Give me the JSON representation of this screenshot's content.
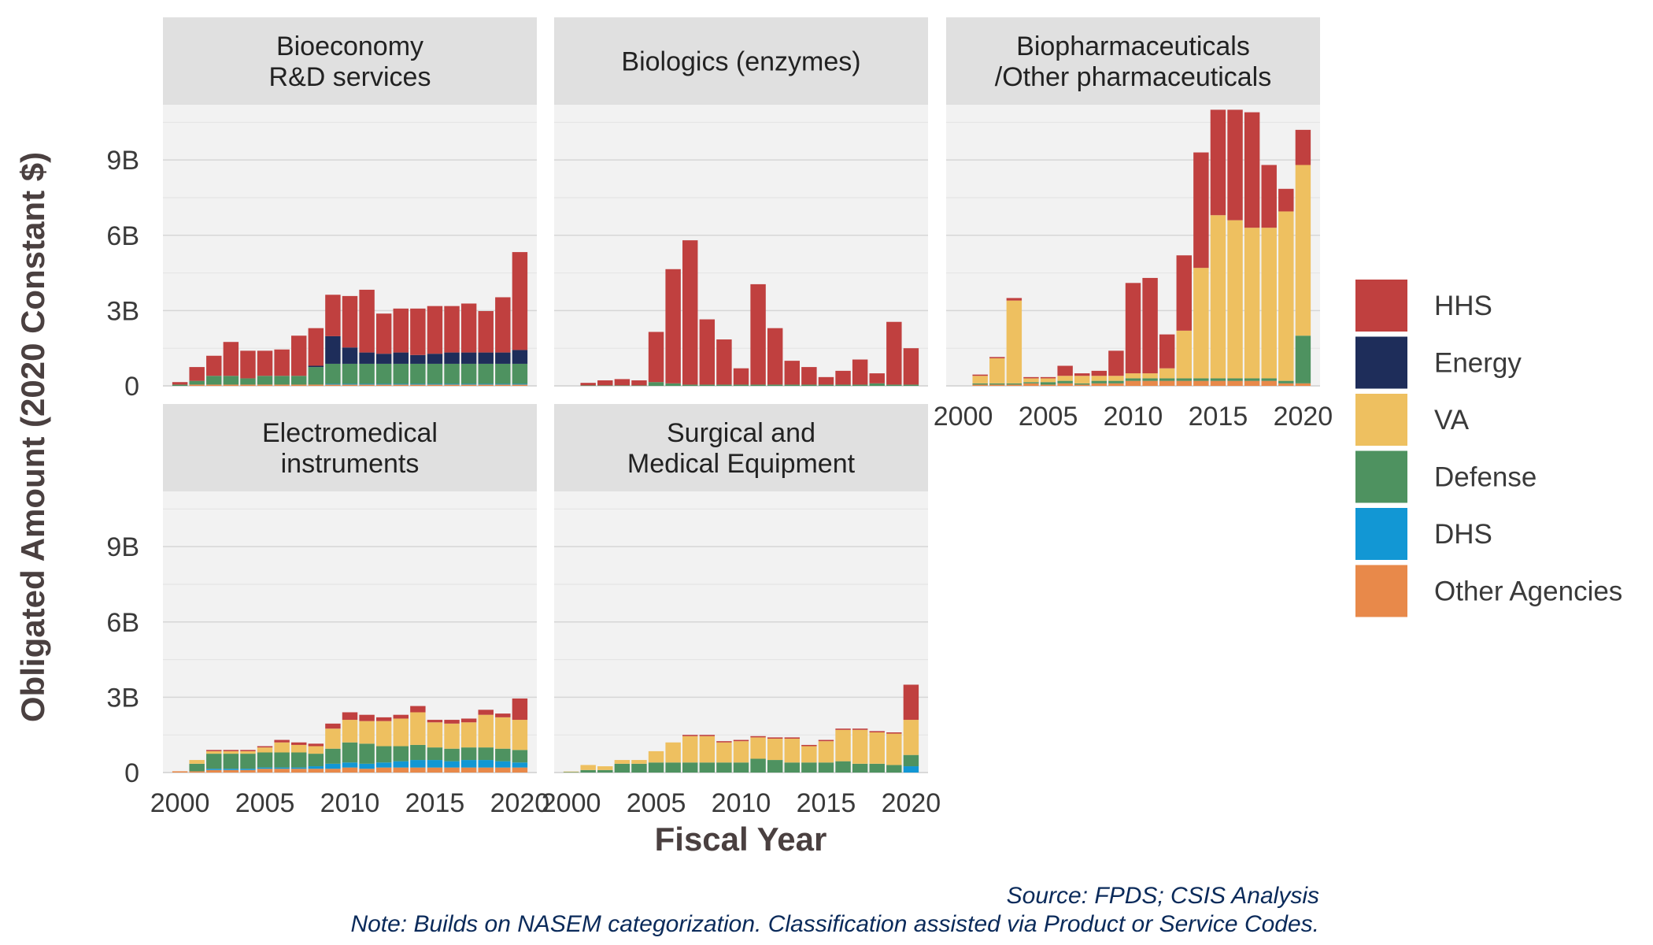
{
  "chart_data": {
    "type": "bar",
    "stacked": true,
    "xlabel": "Fiscal Year",
    "ylabel": "Obligated Amount (2020 Constant $)",
    "x_ticks": [
      2000,
      2005,
      2010,
      2015,
      2020
    ],
    "y_ticks": [
      {
        "value": 0,
        "label": "0"
      },
      {
        "value": 3,
        "label": "3B"
      },
      {
        "value": 6,
        "label": "6B"
      },
      {
        "value": 9,
        "label": "9B"
      }
    ],
    "ylim": [
      0,
      11.2
    ],
    "xlim": [
      1999,
      2021
    ],
    "grid": true,
    "legend_position": "right",
    "years": [
      2000,
      2001,
      2002,
      2003,
      2004,
      2005,
      2006,
      2007,
      2008,
      2009,
      2010,
      2011,
      2012,
      2013,
      2014,
      2015,
      2016,
      2017,
      2018,
      2019,
      2020
    ],
    "series_order": [
      "Other Agencies",
      "DHS",
      "Defense",
      "VA",
      "Energy",
      "HHS"
    ],
    "legend": [
      {
        "name": "HHS",
        "color": "#c0403f"
      },
      {
        "name": "Energy",
        "color": "#1e2d5a"
      },
      {
        "name": "VA",
        "color": "#eec060"
      },
      {
        "name": "Defense",
        "color": "#4e9260"
      },
      {
        "name": "DHS",
        "color": "#1297d4"
      },
      {
        "name": "Other Agencies",
        "color": "#e8894a"
      }
    ],
    "facets": [
      {
        "title_lines": [
          "Bioeconomy",
          "R&D services"
        ],
        "stacks": {
          "Other Agencies": [
            0,
            0.05,
            0.05,
            0.05,
            0.05,
            0.05,
            0.05,
            0.05,
            0.05,
            0.05,
            0.05,
            0.05,
            0.05,
            0.05,
            0.05,
            0.05,
            0.05,
            0.05,
            0.05,
            0.05,
            0.05
          ],
          "DHS": [
            0,
            0,
            0,
            0,
            0,
            0,
            0,
            0,
            0,
            0.03,
            0.03,
            0.03,
            0.03,
            0.03,
            0.03,
            0.03,
            0.03,
            0.03,
            0.03,
            0.03,
            0.03
          ],
          "Defense": [
            0.05,
            0.15,
            0.35,
            0.35,
            0.25,
            0.35,
            0.35,
            0.35,
            0.7,
            0.8,
            0.8,
            0.8,
            0.8,
            0.8,
            0.8,
            0.8,
            0.8,
            0.8,
            0.8,
            0.8,
            0.8
          ],
          "VA": [
            0,
            0,
            0,
            0,
            0,
            0,
            0,
            0,
            0,
            0,
            0,
            0,
            0,
            0,
            0,
            0,
            0,
            0,
            0,
            0,
            0
          ],
          "Energy": [
            0,
            0,
            0,
            0,
            0,
            0,
            0,
            0,
            0.05,
            1.1,
            0.65,
            0.45,
            0.4,
            0.45,
            0.35,
            0.4,
            0.45,
            0.45,
            0.45,
            0.45,
            0.55
          ],
          "HHS": [
            0.1,
            0.55,
            0.8,
            1.35,
            1.1,
            1.0,
            1.05,
            1.6,
            1.5,
            1.65,
            2.05,
            2.5,
            1.6,
            1.75,
            1.85,
            1.9,
            1.85,
            1.95,
            1.65,
            2.2,
            3.9
          ]
        }
      },
      {
        "title_lines": [
          "Biologics (enzymes)"
        ],
        "stacks": {
          "Other Agencies": [
            0,
            0,
            0,
            0,
            0,
            0,
            0,
            0,
            0,
            0,
            0,
            0,
            0,
            0,
            0,
            0,
            0,
            0,
            0,
            0,
            0
          ],
          "DHS": [
            0,
            0,
            0,
            0,
            0,
            0,
            0,
            0,
            0,
            0,
            0,
            0,
            0,
            0,
            0,
            0,
            0,
            0,
            0,
            0,
            0
          ],
          "Defense": [
            0,
            0.02,
            0.02,
            0.02,
            0.02,
            0.15,
            0.1,
            0.05,
            0.05,
            0.05,
            0.05,
            0.05,
            0.05,
            0.05,
            0.05,
            0.05,
            0.05,
            0.05,
            0.1,
            0.05,
            0.05
          ],
          "VA": [
            0,
            0,
            0,
            0,
            0,
            0,
            0,
            0,
            0,
            0,
            0,
            0,
            0,
            0,
            0,
            0,
            0,
            0,
            0,
            0,
            0
          ],
          "Energy": [
            0,
            0,
            0,
            0,
            0,
            0,
            0,
            0,
            0,
            0,
            0,
            0,
            0,
            0,
            0,
            0,
            0,
            0,
            0,
            0,
            0
          ],
          "HHS": [
            0,
            0.1,
            0.2,
            0.25,
            0.2,
            2.0,
            4.55,
            5.75,
            2.6,
            1.8,
            0.65,
            4.0,
            2.25,
            0.95,
            0.7,
            0.3,
            0.55,
            1.0,
            0.4,
            2.5,
            1.45
          ]
        }
      },
      {
        "title_lines": [
          "Biopharmaceuticals",
          "/Other pharmaceuticals"
        ],
        "stacks": {
          "Other Agencies": [
            0,
            0.05,
            0.05,
            0.05,
            0.1,
            0.05,
            0.1,
            0.05,
            0.1,
            0.1,
            0.2,
            0.2,
            0.2,
            0.2,
            0.2,
            0.2,
            0.2,
            0.2,
            0.2,
            0.1,
            0.1
          ],
          "DHS": [
            0,
            0,
            0,
            0,
            0,
            0,
            0,
            0,
            0,
            0,
            0,
            0,
            0,
            0,
            0,
            0,
            0,
            0,
            0,
            0,
            0
          ],
          "Defense": [
            0,
            0.05,
            0.05,
            0.05,
            0.05,
            0.1,
            0.1,
            0.05,
            0.1,
            0.1,
            0.1,
            0.1,
            0.1,
            0.1,
            0.1,
            0.1,
            0.1,
            0.1,
            0.1,
            0.1,
            1.9
          ],
          "VA": [
            0,
            0.3,
            1.0,
            3.3,
            0.15,
            0.15,
            0.2,
            0.3,
            0.2,
            0.2,
            0.2,
            0.2,
            0.4,
            1.9,
            4.4,
            6.5,
            6.3,
            6.0,
            6.0,
            6.75,
            6.8
          ],
          "Energy": [
            0,
            0,
            0,
            0,
            0,
            0,
            0,
            0,
            0,
            0,
            0,
            0,
            0,
            0,
            0,
            0,
            0,
            0,
            0,
            0,
            0
          ],
          "HHS": [
            0,
            0.05,
            0.05,
            0.1,
            0.05,
            0.05,
            0.4,
            0.1,
            0.2,
            1.0,
            3.6,
            3.8,
            1.35,
            3.0,
            4.6,
            4.2,
            4.4,
            4.6,
            2.5,
            0.9,
            1.4
          ]
        }
      },
      {
        "title_lines": [
          "Electromedical",
          "instruments"
        ],
        "stacks": {
          "Other Agencies": [
            0.05,
            0.05,
            0.1,
            0.1,
            0.1,
            0.15,
            0.15,
            0.15,
            0.15,
            0.15,
            0.2,
            0.15,
            0.2,
            0.2,
            0.2,
            0.2,
            0.2,
            0.2,
            0.2,
            0.2,
            0.2
          ],
          "DHS": [
            0,
            0,
            0.05,
            0.05,
            0.05,
            0.05,
            0.05,
            0.05,
            0.1,
            0.2,
            0.2,
            0.2,
            0.2,
            0.25,
            0.3,
            0.3,
            0.25,
            0.3,
            0.3,
            0.25,
            0.2
          ],
          "Defense": [
            0,
            0.3,
            0.6,
            0.6,
            0.6,
            0.6,
            0.6,
            0.6,
            0.5,
            0.6,
            0.8,
            0.8,
            0.65,
            0.6,
            0.6,
            0.5,
            0.5,
            0.5,
            0.5,
            0.5,
            0.5
          ],
          "VA": [
            0,
            0.15,
            0.1,
            0.1,
            0.1,
            0.2,
            0.4,
            0.3,
            0.3,
            0.8,
            0.9,
            0.9,
            1.0,
            1.1,
            1.3,
            1.0,
            1.0,
            1.0,
            1.3,
            1.25,
            1.2
          ],
          "Energy": [
            0,
            0,
            0,
            0,
            0,
            0,
            0,
            0,
            0,
            0,
            0,
            0,
            0,
            0,
            0,
            0,
            0,
            0,
            0,
            0,
            0
          ],
          "HHS": [
            0,
            0,
            0.05,
            0.05,
            0.05,
            0.05,
            0.1,
            0.1,
            0.1,
            0.2,
            0.3,
            0.25,
            0.15,
            0.15,
            0.25,
            0.1,
            0.15,
            0.15,
            0.2,
            0.15,
            0.85
          ]
        }
      },
      {
        "title_lines": [
          "Surgical and",
          "Medical Equipment"
        ],
        "stacks": {
          "Other Agencies": [
            0,
            0,
            0,
            0,
            0,
            0,
            0,
            0,
            0,
            0,
            0,
            0,
            0,
            0,
            0,
            0,
            0,
            0,
            0,
            0,
            0
          ],
          "DHS": [
            0,
            0,
            0,
            0,
            0,
            0,
            0,
            0,
            0,
            0,
            0,
            0,
            0,
            0,
            0,
            0,
            0,
            0,
            0,
            0,
            0.25
          ],
          "Defense": [
            0.02,
            0.1,
            0.1,
            0.35,
            0.35,
            0.4,
            0.4,
            0.4,
            0.4,
            0.4,
            0.4,
            0.55,
            0.5,
            0.4,
            0.4,
            0.4,
            0.45,
            0.35,
            0.35,
            0.3,
            0.45
          ],
          "VA": [
            0.02,
            0.2,
            0.15,
            0.15,
            0.15,
            0.45,
            0.8,
            1.05,
            1.05,
            0.8,
            0.85,
            0.85,
            0.85,
            0.95,
            0.65,
            0.85,
            1.25,
            1.35,
            1.25,
            1.25,
            1.4
          ],
          "Energy": [
            0,
            0,
            0,
            0,
            0,
            0,
            0,
            0,
            0,
            0,
            0,
            0,
            0,
            0,
            0,
            0,
            0,
            0,
            0,
            0,
            0
          ],
          "HHS": [
            0,
            0,
            0,
            0,
            0,
            0,
            0,
            0.05,
            0.05,
            0.05,
            0.05,
            0.05,
            0.05,
            0.05,
            0.05,
            0.05,
            0.05,
            0.05,
            0.05,
            0.05,
            1.4
          ]
        }
      }
    ]
  },
  "caption": {
    "source": "Source: FPDS; CSIS Analysis",
    "note": "Note: Builds on NASEM categorization. Classification assisted via Product or Service Codes."
  }
}
